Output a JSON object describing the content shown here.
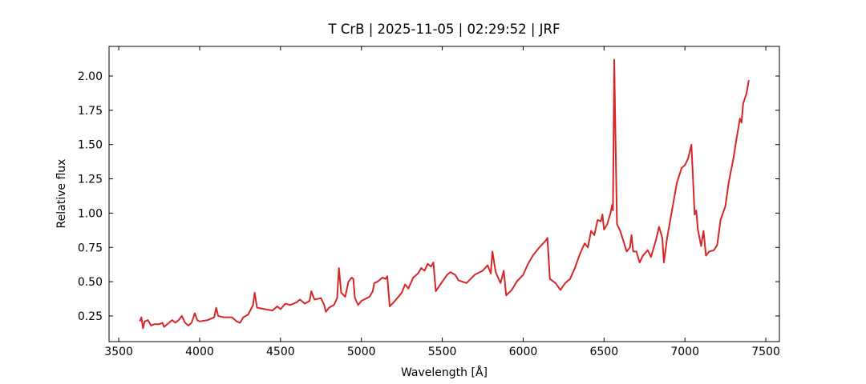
{
  "chart_data": {
    "type": "line",
    "title": "T CrB | 2025-11-05 | 02:29:52 | JRF",
    "xlabel": "Wavelength [Å]",
    "ylabel": "Relative flux",
    "color": "#d62728",
    "xlim": [
      3440,
      7584
    ],
    "ylim": [
      0.063,
      2.216
    ],
    "xticks": [
      3500,
      4000,
      4500,
      5000,
      5500,
      6000,
      6500,
      7000,
      7500
    ],
    "yticks": [
      0.25,
      {
        "value": 0.5,
        "label": "0.50"
      },
      0.75,
      {
        "value": 1,
        "label": "1.00"
      },
      1.25,
      {
        "value": 1.5,
        "label": "1.50"
      },
      1.75,
      {
        "value": 2,
        "label": "2.00"
      }
    ],
    "x": [
      3630,
      3640,
      3650,
      3660,
      3680,
      3700,
      3720,
      3750,
      3770,
      3780,
      3800,
      3830,
      3850,
      3870,
      3890,
      3910,
      3930,
      3950,
      3970,
      3985,
      4000,
      4050,
      4090,
      4102,
      4115,
      4150,
      4200,
      4230,
      4250,
      4270,
      4300,
      4330,
      4340,
      4355,
      4400,
      4450,
      4480,
      4500,
      4530,
      4560,
      4600,
      4620,
      4650,
      4680,
      4690,
      4710,
      4750,
      4770,
      4780,
      4800,
      4830,
      4850,
      4861,
      4875,
      4900,
      4920,
      4940,
      4950,
      4960,
      4980,
      5000,
      5050,
      5070,
      5080,
      5100,
      5130,
      5150,
      5160,
      5175,
      5200,
      5250,
      5270,
      5290,
      5320,
      5350,
      5370,
      5390,
      5410,
      5430,
      5445,
      5460,
      5500,
      5530,
      5550,
      5580,
      5600,
      5650,
      5700,
      5750,
      5780,
      5800,
      5810,
      5830,
      5860,
      5880,
      5895,
      5930,
      5960,
      6000,
      6030,
      6060,
      6100,
      6140,
      6150,
      6165,
      6200,
      6230,
      6260,
      6290,
      6320,
      6350,
      6380,
      6400,
      6420,
      6440,
      6460,
      6480,
      6490,
      6500,
      6520,
      6540,
      6550,
      6555,
      6563,
      6570,
      6580,
      6600,
      6640,
      6660,
      6670,
      6680,
      6700,
      6720,
      6740,
      6770,
      6790,
      6820,
      6840,
      6860,
      6870,
      6890,
      6920,
      6950,
      6980,
      7000,
      7020,
      7040,
      7050,
      7060,
      7070,
      7080,
      7100,
      7115,
      7130,
      7150,
      7180,
      7200,
      7220,
      7250,
      7270,
      7300,
      7320,
      7340,
      7350,
      7360,
      7380,
      7395
    ],
    "values": [
      0.21,
      0.24,
      0.16,
      0.21,
      0.22,
      0.18,
      0.19,
      0.19,
      0.2,
      0.17,
      0.19,
      0.22,
      0.2,
      0.22,
      0.25,
      0.2,
      0.18,
      0.2,
      0.27,
      0.22,
      0.21,
      0.22,
      0.24,
      0.31,
      0.25,
      0.24,
      0.24,
      0.21,
      0.2,
      0.24,
      0.26,
      0.33,
      0.42,
      0.31,
      0.3,
      0.29,
      0.32,
      0.3,
      0.34,
      0.33,
      0.35,
      0.37,
      0.34,
      0.36,
      0.43,
      0.37,
      0.38,
      0.33,
      0.28,
      0.31,
      0.33,
      0.38,
      0.6,
      0.42,
      0.39,
      0.5,
      0.53,
      0.52,
      0.38,
      0.33,
      0.36,
      0.39,
      0.43,
      0.49,
      0.5,
      0.53,
      0.52,
      0.54,
      0.32,
      0.35,
      0.42,
      0.48,
      0.45,
      0.53,
      0.56,
      0.6,
      0.58,
      0.63,
      0.61,
      0.64,
      0.43,
      0.5,
      0.55,
      0.57,
      0.55,
      0.51,
      0.49,
      0.55,
      0.58,
      0.62,
      0.56,
      0.72,
      0.57,
      0.49,
      0.58,
      0.4,
      0.44,
      0.5,
      0.55,
      0.63,
      0.69,
      0.75,
      0.8,
      0.82,
      0.52,
      0.49,
      0.44,
      0.49,
      0.52,
      0.6,
      0.7,
      0.78,
      0.75,
      0.87,
      0.84,
      0.95,
      0.94,
      0.99,
      0.88,
      0.92,
      1.0,
      1.06,
      1.02,
      2.12,
      1.6,
      0.92,
      0.87,
      0.72,
      0.75,
      0.84,
      0.72,
      0.72,
      0.64,
      0.69,
      0.73,
      0.68,
      0.8,
      0.9,
      0.82,
      0.64,
      0.82,
      1.02,
      1.22,
      1.33,
      1.35,
      1.4,
      1.5,
      1.25,
      0.99,
      1.02,
      0.88,
      0.76,
      0.87,
      0.69,
      0.72,
      0.73,
      0.77,
      0.95,
      1.05,
      1.22,
      1.4,
      1.55,
      1.69,
      1.66,
      1.8,
      1.87,
      1.97
    ]
  }
}
